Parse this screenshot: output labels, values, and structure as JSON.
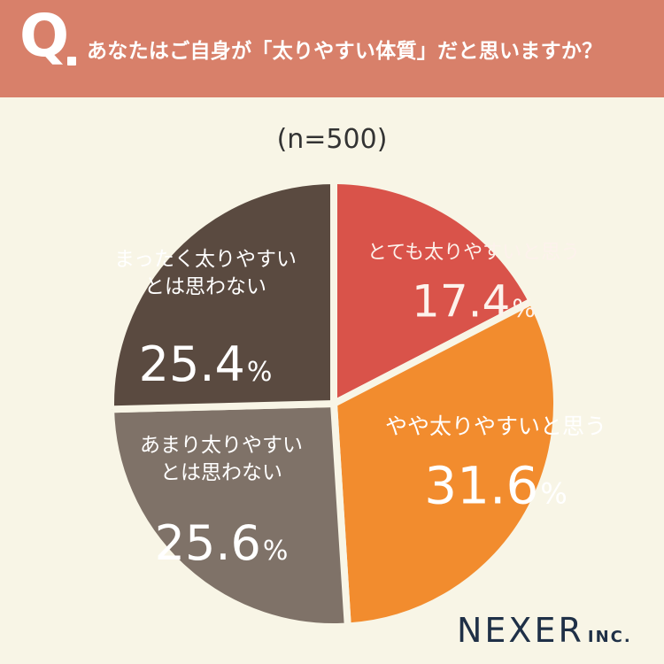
{
  "header": {
    "q_label": "Q",
    "question": "あなたはご自身が「太りやすい体質」だと思いますか？"
  },
  "sample": "(n=500)",
  "chart_data": {
    "type": "pie",
    "slices": [
      {
        "label_lines": [
          "とても太りやすいと思う"
        ],
        "value": 17.4,
        "display": "17.4",
        "color": "#d9534a",
        "label_color": "#fdf2ec"
      },
      {
        "label_lines": [
          "やや太りやすいと思う"
        ],
        "value": 31.6,
        "display": "31.6",
        "color": "#f28c2e",
        "label_color": "#ffffff"
      },
      {
        "label_lines": [
          "あまり太りやすい",
          "とは思わない"
        ],
        "value": 25.6,
        "display": "25.6",
        "color": "#7f7268",
        "label_color": "#ffffff"
      },
      {
        "label_lines": [
          "まったく太りやすい",
          "とは思わない"
        ],
        "value": 25.4,
        "display": "25.4",
        "color": "#5a4a40",
        "label_color": "#ffffff"
      }
    ],
    "unit": "%"
  },
  "logo": {
    "main": "NEXER",
    "suffix": "INC."
  }
}
